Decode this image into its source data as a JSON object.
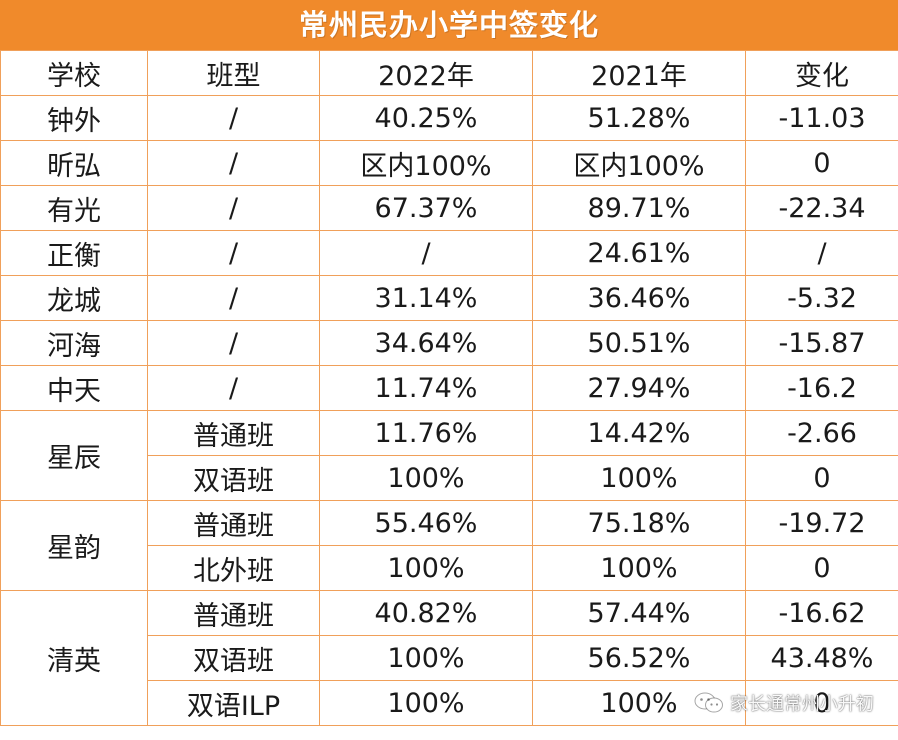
{
  "title": "常州民办小学中签变化",
  "headers": [
    "学校",
    "班型",
    "2022年",
    "2021年",
    "变化"
  ],
  "rows": [
    {
      "school": "钟外",
      "type": "/",
      "y2022": "40.25%",
      "y2021": "51.28%",
      "change": "-11.03"
    },
    {
      "school": "昕弘",
      "type": "/",
      "y2022": "区内100%",
      "y2021": "区内100%",
      "change": "0"
    },
    {
      "school": "有光",
      "type": "/",
      "y2022": "67.37%",
      "y2021": "89.71%",
      "change": "-22.34"
    },
    {
      "school": "正衡",
      "type": "/",
      "y2022": "/",
      "y2021": "24.61%",
      "change": "/"
    },
    {
      "school": "龙城",
      "type": "/",
      "y2022": "31.14%",
      "y2021": "36.46%",
      "change": "-5.32"
    },
    {
      "school": "河海",
      "type": "/",
      "y2022": "34.64%",
      "y2021": "50.51%",
      "change": "-15.87"
    },
    {
      "school": "中天",
      "type": "/",
      "y2022": "11.74%",
      "y2021": "27.94%",
      "change": "-16.2"
    },
    {
      "school": "星辰",
      "type": "普通班",
      "y2022": "11.76%",
      "y2021": "14.42%",
      "change": "-2.66"
    },
    {
      "school": "",
      "type": "双语班",
      "y2022": "100%",
      "y2021": "100%",
      "change": "0"
    },
    {
      "school": "星韵",
      "type": "普通班",
      "y2022": "55.46%",
      "y2021": "75.18%",
      "change": "-19.72"
    },
    {
      "school": "",
      "type": "北外班",
      "y2022": "100%",
      "y2021": "100%",
      "change": "0"
    },
    {
      "school": "清英",
      "type": "普通班",
      "y2022": "40.82%",
      "y2021": "57.44%",
      "change": "-16.62"
    },
    {
      "school": "",
      "type": "双语班",
      "y2022": "100%",
      "y2021": "56.52%",
      "change": "43.48%"
    },
    {
      "school": "",
      "type": "双语ILP",
      "y2022": "100%",
      "y2021": "100%",
      "change": "0"
    }
  ],
  "watermark": {
    "icon": "wechat-icon",
    "text": "家长通常州小升初"
  },
  "colors": {
    "accent": "#f08a2b",
    "grid": "#f0a05a",
    "text": "#1a1a1a"
  }
}
